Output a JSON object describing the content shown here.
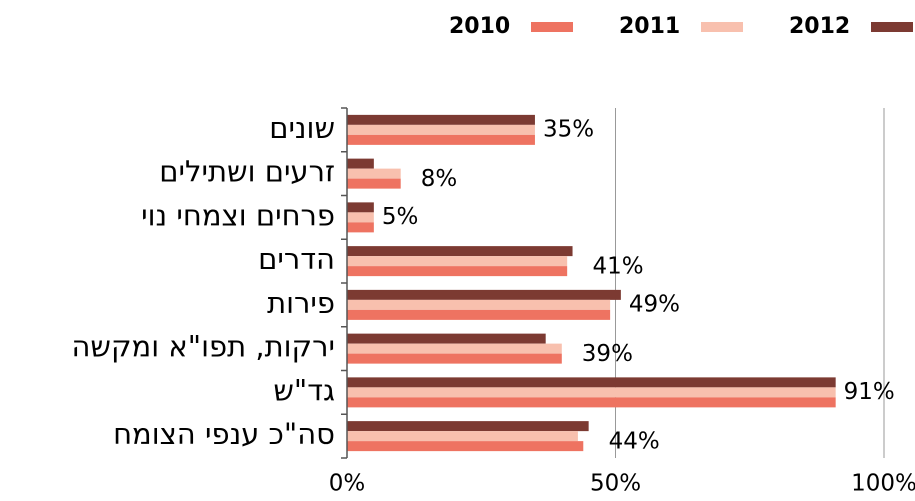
{
  "chart_data": {
    "type": "bar",
    "orientation": "horizontal",
    "categories": [
      "שונים",
      "זרעים ושתילים",
      "פרחים וצמחי נוי",
      "הדרים",
      "פירות",
      "ירקות, תפו\"א ומקשה",
      "גד\"ש",
      "סה\"כ ענפי הצומח"
    ],
    "series": [
      {
        "name": "2010",
        "color": "#ee7361",
        "values": [
          35,
          10,
          5,
          41,
          49,
          40,
          91,
          44
        ]
      },
      {
        "name": "2011",
        "color": "#f8c0ae",
        "values": [
          35,
          10,
          5,
          41,
          49,
          40,
          91,
          43
        ]
      },
      {
        "name": "2012",
        "color": "#7c3a32",
        "values": [
          35,
          5,
          5,
          42,
          51,
          37,
          91,
          45
        ]
      }
    ],
    "annotations": [
      "35%",
      "8%",
      "5%",
      "41%",
      "49%",
      "39%",
      "91%",
      "44%"
    ],
    "xlim": [
      0,
      100
    ],
    "xticks": [
      {
        "value": 0,
        "label": "0%"
      },
      {
        "value": 50,
        "label": "50%"
      },
      {
        "value": 100,
        "label": "100%"
      }
    ],
    "grid": true,
    "legend": "top-right"
  }
}
